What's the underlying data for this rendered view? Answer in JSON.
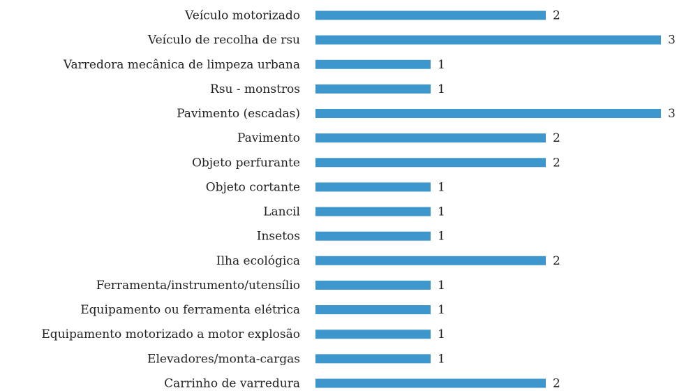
{
  "chart_data": {
    "type": "barh",
    "categories": [
      "Veículo motorizado",
      "Veículo de recolha de rsu",
      "Varredora mecânica de limpeza urbana",
      "Rsu - monstros",
      "Pavimento (escadas)",
      "Pavimento",
      "Objeto perfurante",
      "Objeto cortante",
      "Lancil",
      "Insetos",
      "Ilha ecológica",
      "Ferramenta/instrumento/utensílio",
      "Equipamento ou ferramenta elétrica",
      "Equipamento motorizado a motor explosão",
      "Elevadores/monta-cargas",
      "Carrinho de varredura"
    ],
    "values": [
      2,
      3,
      1,
      1,
      3,
      2,
      2,
      1,
      1,
      1,
      2,
      1,
      1,
      1,
      1,
      2
    ],
    "color": "#3d97cc",
    "xlim": [
      0,
      3
    ]
  }
}
